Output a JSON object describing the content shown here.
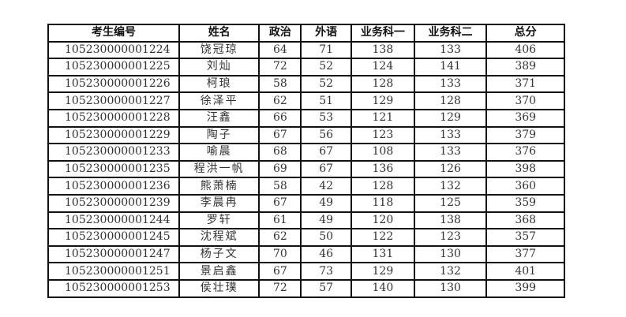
{
  "headers": [
    "考生编号",
    "姓名",
    "政治",
    "外语",
    "业务科一",
    "业务科二",
    "总分"
  ],
  "rows": [
    [
      "105230000001224",
      "饶冠琼",
      "64",
      "71",
      "138",
      "133",
      "406"
    ],
    [
      "105230000001225",
      "刘灿",
      "72",
      "52",
      "124",
      "141",
      "389"
    ],
    [
      "105230000001226",
      "柯琅",
      "58",
      "52",
      "128",
      "133",
      "371"
    ],
    [
      "105230000001227",
      "徐泽平",
      "62",
      "51",
      "129",
      "128",
      "370"
    ],
    [
      "105230000001228",
      "汪鑫",
      "66",
      "53",
      "121",
      "129",
      "369"
    ],
    [
      "105230000001229",
      "陶子",
      "67",
      "56",
      "123",
      "133",
      "379"
    ],
    [
      "105230000001233",
      "喻晨",
      "68",
      "67",
      "108",
      "133",
      "376"
    ],
    [
      "105230000001235",
      "程洪一帆",
      "69",
      "67",
      "136",
      "126",
      "398"
    ],
    [
      "105230000001236",
      "熊萧楠",
      "58",
      "42",
      "128",
      "132",
      "360"
    ],
    [
      "105230000001239",
      "李晨冉",
      "67",
      "49",
      "118",
      "125",
      "359"
    ],
    [
      "105230000001244",
      "罗轩",
      "61",
      "49",
      "120",
      "138",
      "368"
    ],
    [
      "105230000001245",
      "沈程斌",
      "62",
      "50",
      "122",
      "123",
      "357"
    ],
    [
      "105230000001247",
      "杨子文",
      "70",
      "46",
      "131",
      "130",
      "377"
    ],
    [
      "105230000001251",
      "景启鑫",
      "67",
      "73",
      "129",
      "132",
      "401"
    ],
    [
      "105230000001253",
      "侯壮璞",
      "72",
      "57",
      "140",
      "130",
      "399"
    ]
  ]
}
